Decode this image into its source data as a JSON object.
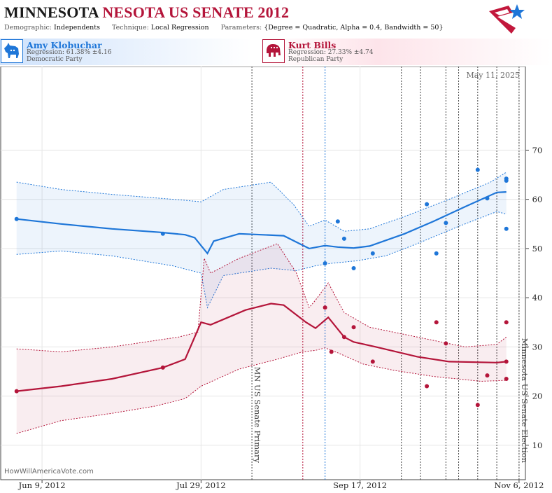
{
  "header": {
    "title_part1": "MINNESOTA",
    "title_part2": "NESOTA US SENATE 2012",
    "params": [
      {
        "key": "Demographic:",
        "value": "Independents"
      },
      {
        "key": "Technique:",
        "value": "Local Regression"
      },
      {
        "key": "Parameters:",
        "value": "{Degree = Quadratic, Alpha = 0.4, Bandwidth = 50}"
      }
    ]
  },
  "candidates": {
    "dem": {
      "name": "Amy Klobuchar",
      "regression": "Regression: 61.38% ±4.16",
      "party": "Democratic Party",
      "color": "#1e76d8"
    },
    "rep": {
      "name": "Kurt Bills",
      "regression": "Regression: 27.33% ±4.74",
      "party": "Republican Party",
      "color": "#b4153a"
    }
  },
  "as_of": "May 11, 2025",
  "credit": "HowWillAmericaVote.com",
  "chart_data": {
    "type": "line",
    "x_ticks": [
      {
        "label": "Jun 9, 2012",
        "date": "2012-06-09"
      },
      {
        "label": "Jul 29, 2012",
        "date": "2012-07-29"
      },
      {
        "label": "Sep 17, 2012",
        "date": "2012-09-17"
      },
      {
        "label": "Nov 6, 2012",
        "date": "2012-11-06"
      }
    ],
    "xlim": [
      "2012-05-27",
      "2012-11-08"
    ],
    "ylim": [
      3,
      87
    ],
    "y_ticks": [
      10,
      20,
      30,
      40,
      50,
      60,
      70
    ],
    "events": [
      {
        "date": "2012-08-14",
        "label": "MN US Senate Primary"
      },
      {
        "date": "2012-11-06",
        "label": "Minnesota US Senate Election"
      }
    ],
    "vlines": [
      {
        "date": "2012-08-30",
        "color": "#b4153a"
      },
      {
        "date": "2012-09-06",
        "color": "#1e76d8"
      },
      {
        "date": "2012-09-30",
        "color": "#444"
      },
      {
        "date": "2012-10-06",
        "color": "#444"
      },
      {
        "date": "2012-10-14",
        "color": "#444"
      },
      {
        "date": "2012-10-18",
        "color": "#444"
      },
      {
        "date": "2012-10-24",
        "color": "#444"
      },
      {
        "date": "2012-10-30",
        "color": "#444"
      }
    ],
    "series": [
      {
        "name": "Amy Klobuchar",
        "color": "#1e76d8",
        "trend": [
          [
            "2012-06-01",
            56
          ],
          [
            "2012-06-15",
            55
          ],
          [
            "2012-07-01",
            54
          ],
          [
            "2012-07-16",
            53.3
          ],
          [
            "2012-07-24",
            52.8
          ],
          [
            "2012-07-27",
            52.2
          ],
          [
            "2012-07-31",
            49
          ],
          [
            "2012-08-02",
            51.5
          ],
          [
            "2012-08-10",
            53
          ],
          [
            "2012-08-24",
            52.6
          ],
          [
            "2012-09-01",
            50
          ],
          [
            "2012-09-06",
            50.6
          ],
          [
            "2012-09-10",
            50.3
          ],
          [
            "2012-09-15",
            50.1
          ],
          [
            "2012-09-20",
            50.5
          ],
          [
            "2012-10-01",
            53
          ],
          [
            "2012-10-10",
            55.5
          ],
          [
            "2012-10-20",
            58.5
          ],
          [
            "2012-10-30",
            61.4
          ],
          [
            "2012-11-02",
            61.5
          ]
        ],
        "upper": [
          [
            "2012-06-01",
            63.5
          ],
          [
            "2012-06-15",
            62
          ],
          [
            "2012-07-01",
            61
          ],
          [
            "2012-07-24",
            59.8
          ],
          [
            "2012-07-29",
            59.5
          ],
          [
            "2012-08-05",
            62
          ],
          [
            "2012-08-20",
            63.5
          ],
          [
            "2012-08-27",
            59
          ],
          [
            "2012-09-01",
            54.5
          ],
          [
            "2012-09-06",
            55.8
          ],
          [
            "2012-09-12",
            53.5
          ],
          [
            "2012-09-20",
            54
          ],
          [
            "2012-10-01",
            56.5
          ],
          [
            "2012-10-15",
            60
          ],
          [
            "2012-10-28",
            63.5
          ],
          [
            "2012-11-02",
            65.5
          ]
        ],
        "lower": [
          [
            "2012-06-01",
            48.8
          ],
          [
            "2012-06-15",
            49.5
          ],
          [
            "2012-07-01",
            48.5
          ],
          [
            "2012-07-20",
            46.5
          ],
          [
            "2012-07-29",
            45
          ],
          [
            "2012-07-31",
            38
          ],
          [
            "2012-08-05",
            44.5
          ],
          [
            "2012-08-20",
            46
          ],
          [
            "2012-08-28",
            45.5
          ],
          [
            "2012-09-03",
            46.5
          ],
          [
            "2012-09-08",
            47
          ],
          [
            "2012-09-16",
            47.5
          ],
          [
            "2012-09-25",
            48.5
          ],
          [
            "2012-10-05",
            51
          ],
          [
            "2012-10-18",
            54.5
          ],
          [
            "2012-10-30",
            57.5
          ],
          [
            "2012-11-02",
            57
          ]
        ],
        "points": [
          [
            "2012-06-01",
            56
          ],
          [
            "2012-07-17",
            53
          ],
          [
            "2012-09-06",
            47
          ],
          [
            "2012-09-10",
            55.5
          ],
          [
            "2012-09-12",
            52
          ],
          [
            "2012-09-15",
            46
          ],
          [
            "2012-09-21",
            49
          ],
          [
            "2012-10-08",
            59
          ],
          [
            "2012-10-11",
            49
          ],
          [
            "2012-10-14",
            55.2
          ],
          [
            "2012-10-24",
            66
          ],
          [
            "2012-10-27",
            60.2
          ],
          [
            "2012-11-02",
            64.2
          ],
          [
            "2012-11-02",
            63.8
          ],
          [
            "2012-11-02",
            54
          ]
        ]
      },
      {
        "name": "Kurt Bills",
        "color": "#b4153a",
        "trend": [
          [
            "2012-06-01",
            21
          ],
          [
            "2012-06-15",
            22
          ],
          [
            "2012-07-01",
            23.5
          ],
          [
            "2012-07-17",
            25.8
          ],
          [
            "2012-07-24",
            27.5
          ],
          [
            "2012-07-29",
            35
          ],
          [
            "2012-08-01",
            34.5
          ],
          [
            "2012-08-12",
            37.5
          ],
          [
            "2012-08-20",
            38.8
          ],
          [
            "2012-08-24",
            38.5
          ],
          [
            "2012-08-31",
            35
          ],
          [
            "2012-09-03",
            33.8
          ],
          [
            "2012-09-07",
            36
          ],
          [
            "2012-09-12",
            32
          ],
          [
            "2012-09-15",
            31
          ],
          [
            "2012-09-22",
            30
          ],
          [
            "2012-10-05",
            28
          ],
          [
            "2012-10-15",
            27
          ],
          [
            "2012-10-30",
            26.8
          ],
          [
            "2012-11-02",
            27
          ]
        ],
        "upper": [
          [
            "2012-06-01",
            29.6
          ],
          [
            "2012-06-15",
            29
          ],
          [
            "2012-07-01",
            30
          ],
          [
            "2012-07-22",
            32
          ],
          [
            "2012-07-28",
            33
          ],
          [
            "2012-07-30",
            48
          ],
          [
            "2012-08-01",
            45
          ],
          [
            "2012-08-10",
            48
          ],
          [
            "2012-08-22",
            51
          ],
          [
            "2012-08-28",
            45
          ],
          [
            "2012-09-01",
            38
          ],
          [
            "2012-09-03",
            39.5
          ],
          [
            "2012-09-07",
            43
          ],
          [
            "2012-09-12",
            37
          ],
          [
            "2012-09-20",
            34
          ],
          [
            "2012-10-05",
            32
          ],
          [
            "2012-10-20",
            30
          ],
          [
            "2012-10-30",
            30.5
          ],
          [
            "2012-11-02",
            32
          ]
        ],
        "lower": [
          [
            "2012-06-01",
            12.4
          ],
          [
            "2012-06-15",
            15
          ],
          [
            "2012-07-01",
            16.5
          ],
          [
            "2012-07-15",
            18
          ],
          [
            "2012-07-24",
            19.5
          ],
          [
            "2012-07-29",
            22
          ],
          [
            "2012-08-10",
            25.5
          ],
          [
            "2012-08-22",
            27.5
          ],
          [
            "2012-08-30",
            29
          ],
          [
            "2012-09-03",
            29.3
          ],
          [
            "2012-09-06",
            29.8
          ],
          [
            "2012-09-10",
            28.8
          ],
          [
            "2012-09-18",
            26.5
          ],
          [
            "2012-09-28",
            25.2
          ],
          [
            "2012-10-10",
            24
          ],
          [
            "2012-10-25",
            23
          ],
          [
            "2012-11-02",
            23.2
          ]
        ],
        "points": [
          [
            "2012-06-01",
            21
          ],
          [
            "2012-07-17",
            25.8
          ],
          [
            "2012-09-06",
            38
          ],
          [
            "2012-09-08",
            29
          ],
          [
            "2012-09-12",
            32
          ],
          [
            "2012-09-15",
            34
          ],
          [
            "2012-09-21",
            27
          ],
          [
            "2012-10-08",
            22
          ],
          [
            "2012-10-11",
            35
          ],
          [
            "2012-10-14",
            30.7
          ],
          [
            "2012-10-24",
            18.2
          ],
          [
            "2012-10-27",
            24.2
          ],
          [
            "2012-11-02",
            35
          ],
          [
            "2012-11-02",
            27
          ],
          [
            "2012-11-02",
            23.5
          ]
        ]
      }
    ]
  }
}
